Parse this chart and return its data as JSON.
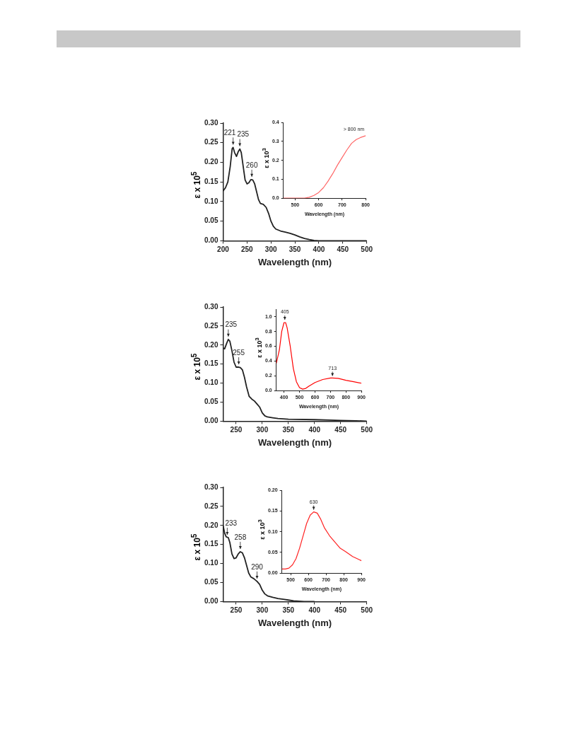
{
  "chart_data": [
    {
      "type": "line",
      "xlabel": "Wavelength (nm)",
      "ylabel": "ε x 10$^{5}$",
      "xlim": [
        200,
        500
      ],
      "xticks": [
        200,
        250,
        300,
        350,
        400,
        450,
        500
      ],
      "ylim": [
        0,
        0.3
      ],
      "yticks": [
        {
          "value": 0,
          "label": "0.00"
        },
        0.05,
        {
          "value": 0.1,
          "label": "0.10"
        },
        0.15,
        {
          "value": 0.2,
          "label": "0.20"
        },
        0.25,
        {
          "value": 0.3,
          "label": "0.30"
        }
      ],
      "series": [
        {
          "color": "#222222",
          "x": [
            200,
            205,
            210,
            215,
            219,
            221,
            224,
            228,
            232,
            235,
            238,
            242,
            246,
            250,
            254,
            258,
            262,
            266,
            270,
            274,
            278,
            284,
            290,
            295,
            300,
            305,
            310,
            320,
            330,
            340,
            350,
            360,
            370,
            380,
            390,
            400,
            450,
            500
          ],
          "values": [
            0.127,
            0.135,
            0.15,
            0.19,
            0.235,
            0.238,
            0.225,
            0.215,
            0.228,
            0.234,
            0.225,
            0.19,
            0.155,
            0.145,
            0.148,
            0.156,
            0.155,
            0.145,
            0.125,
            0.105,
            0.095,
            0.093,
            0.085,
            0.07,
            0.05,
            0.037,
            0.03,
            0.025,
            0.022,
            0.019,
            0.015,
            0.01,
            0.006,
            0.003,
            0.001,
            0,
            0,
            0
          ]
        }
      ],
      "annotations": [
        {
          "text": "221",
          "x": 221,
          "y": 0.238
        },
        {
          "text": "235",
          "x": 235,
          "y": 0.234
        },
        {
          "text": "260",
          "x": 260,
          "y": 0.156
        }
      ]
    },
    {
      "type": "line",
      "xlabel": "Wavelength (nm)",
      "ylabel": "ε x 10$^{3}$",
      "xlim": [
        450,
        800
      ],
      "xticks": [
        500,
        600,
        700,
        800
      ],
      "ylim": [
        0,
        0.4
      ],
      "yticks": [
        {
          "value": 0,
          "label": "0.0"
        },
        0.1,
        0.2,
        0.3,
        0.4
      ],
      "series": [
        {
          "color": "#ff6666",
          "x": [
            450,
            540,
            560,
            580,
            600,
            620,
            640,
            660,
            680,
            700,
            720,
            740,
            760,
            780,
            800
          ],
          "values": [
            0,
            0,
            0.005,
            0.015,
            0.03,
            0.055,
            0.09,
            0.13,
            0.175,
            0.215,
            0.255,
            0.29,
            0.31,
            0.322,
            0.33
          ]
        }
      ],
      "annotations": [
        "> 800 nm"
      ]
    },
    {
      "type": "line",
      "xlabel": "Wavelength (nm)",
      "ylabel": "ε x 10$^{5}$",
      "xlim": [
        225,
        500
      ],
      "xticks": [
        250,
        300,
        350,
        400,
        450,
        500
      ],
      "ylim": [
        0,
        0.3
      ],
      "yticks": [
        {
          "value": 0,
          "label": "0.00"
        },
        0.05,
        {
          "value": 0.1,
          "label": "0.10"
        },
        0.15,
        {
          "value": 0.2,
          "label": "0.20"
        },
        0.25,
        {
          "value": 0.3,
          "label": "0.30"
        }
      ],
      "series": [
        {
          "color": "#222222",
          "x": [
            225,
            228,
            232,
            235,
            238,
            242,
            246,
            250,
            255,
            258,
            262,
            266,
            270,
            275,
            280,
            285,
            290,
            295,
            300,
            305,
            310,
            320,
            330,
            350,
            400,
            430,
            450,
            480,
            500
          ],
          "values": [
            0.192,
            0.19,
            0.205,
            0.215,
            0.21,
            0.185,
            0.155,
            0.142,
            0.142,
            0.141,
            0.135,
            0.115,
            0.09,
            0.065,
            0.058,
            0.053,
            0.045,
            0.037,
            0.022,
            0.014,
            0.011,
            0.009,
            0.007,
            0.005,
            0.004,
            0.003,
            0.002,
            0.001,
            0
          ]
        }
      ],
      "annotations": [
        {
          "text": "235",
          "x": 235,
          "y": 0.215
        },
        {
          "text": "255",
          "x": 255,
          "y": 0.142
        }
      ]
    },
    {
      "type": "line",
      "xlabel": "Wavelength (nm)",
      "ylabel": "ε x 10$^{3}$",
      "xlim": [
        350,
        900
      ],
      "xticks": [
        400,
        500,
        600,
        700,
        800,
        900
      ],
      "ylim": [
        0,
        1.1
      ],
      "yticks": [
        {
          "value": 0,
          "label": "0.0"
        },
        0.2,
        0.4,
        0.6,
        0.8,
        {
          "value": 1,
          "label": "1.0"
        }
      ],
      "series": [
        {
          "color": "#ff0000",
          "x": [
            350,
            370,
            385,
            400,
            410,
            420,
            440,
            460,
            480,
            500,
            520,
            540,
            560,
            600,
            650,
            700,
            713,
            750,
            800,
            850,
            900
          ],
          "values": [
            0.37,
            0.55,
            0.8,
            0.92,
            0.92,
            0.85,
            0.6,
            0.3,
            0.12,
            0.04,
            0.02,
            0.03,
            0.06,
            0.11,
            0.15,
            0.17,
            0.17,
            0.165,
            0.14,
            0.12,
            0.1
          ]
        }
      ],
      "annotations": [
        {
          "text": "405",
          "x": 405,
          "y": 0.93
        },
        {
          "text": "713",
          "x": 713,
          "y": 0.17
        }
      ]
    },
    {
      "type": "line",
      "xlabel": "Wavelength (nm)",
      "ylabel": "ε x 10$^{5}$",
      "xlim": [
        225,
        500
      ],
      "xticks": [
        250,
        300,
        350,
        400,
        450,
        500
      ],
      "ylim": [
        0,
        0.3
      ],
      "yticks": [
        {
          "value": 0,
          "label": "0.00"
        },
        0.05,
        {
          "value": 0.1,
          "label": "0.10"
        },
        0.15,
        {
          "value": 0.2,
          "label": "0.20"
        },
        0.25,
        {
          "value": 0.3,
          "label": "0.30"
        }
      ],
      "series": [
        {
          "color": "#222222",
          "x": [
            225,
            228,
            231,
            235,
            238,
            242,
            246,
            250,
            254,
            258,
            262,
            266,
            270,
            274,
            278,
            284,
            290,
            295,
            300,
            305,
            310,
            320,
            330,
            340,
            350,
            360,
            380,
            400
          ],
          "values": [
            0.2,
            0.18,
            0.17,
            0.168,
            0.155,
            0.125,
            0.113,
            0.115,
            0.125,
            0.131,
            0.128,
            0.115,
            0.095,
            0.075,
            0.065,
            0.06,
            0.053,
            0.045,
            0.03,
            0.02,
            0.015,
            0.011,
            0.008,
            0.006,
            0.004,
            0.002,
            0,
            0
          ]
        }
      ],
      "annotations": [
        {
          "text": "233",
          "x": 233,
          "y": 0.168
        },
        {
          "text": "258",
          "x": 258,
          "y": 0.131
        },
        {
          "text": "290",
          "x": 290,
          "y": 0.053
        }
      ]
    },
    {
      "type": "line",
      "xlabel": "Wavelength (nm)",
      "ylabel": "ε x 10$^{3}$",
      "xlim": [
        450,
        900
      ],
      "xticks": [
        500,
        600,
        700,
        800,
        900
      ],
      "ylim": [
        0,
        0.2
      ],
      "yticks": [
        {
          "value": 0,
          "label": "0.00"
        },
        0.05,
        {
          "value": 0.1,
          "label": "0.10"
        },
        0.15,
        {
          "value": 0.2,
          "label": "0.20"
        }
      ],
      "series": [
        {
          "color": "#ff2222",
          "x": [
            450,
            470,
            490,
            510,
            530,
            550,
            570,
            590,
            610,
            630,
            650,
            670,
            690,
            720,
            750,
            780,
            810,
            850,
            880,
            900
          ],
          "values": [
            0.01,
            0.01,
            0.012,
            0.02,
            0.035,
            0.06,
            0.09,
            0.12,
            0.14,
            0.148,
            0.145,
            0.13,
            0.11,
            0.09,
            0.075,
            0.06,
            0.052,
            0.04,
            0.034,
            0.03
          ]
        }
      ],
      "annotations": [
        {
          "text": "630",
          "x": 630,
          "y": 0.148
        }
      ]
    }
  ]
}
